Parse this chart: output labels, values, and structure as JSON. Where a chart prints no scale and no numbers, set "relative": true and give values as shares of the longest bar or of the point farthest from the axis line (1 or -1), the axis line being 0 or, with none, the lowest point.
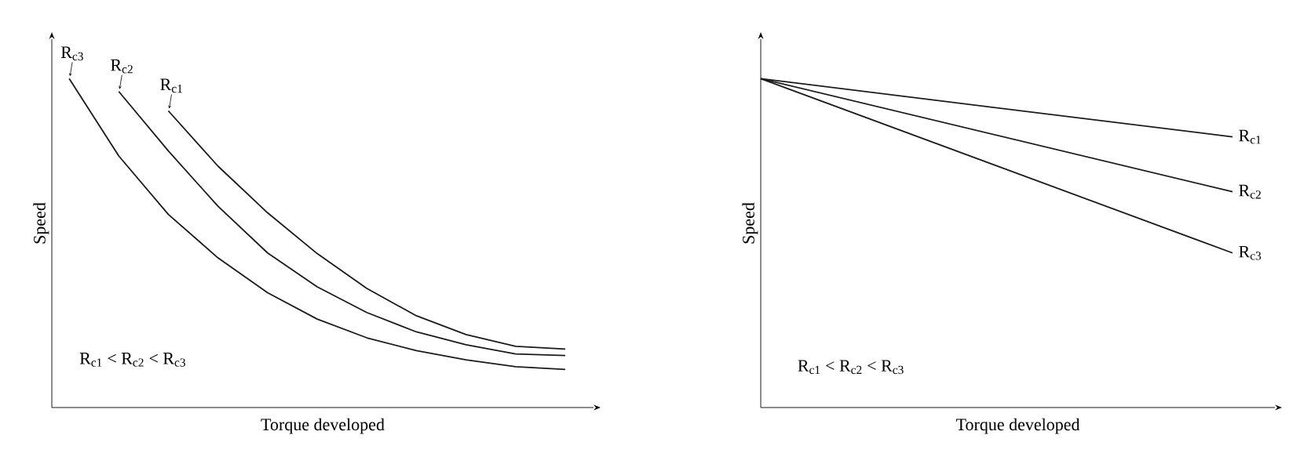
{
  "chart_data": [
    {
      "type": "line",
      "relative": true,
      "xlabel": "Torque developed",
      "ylabel": "Speed",
      "marker": "none",
      "line_style": "solid",
      "categories": [
        null,
        null,
        null,
        null,
        null,
        null,
        null,
        null,
        null,
        null,
        null
      ],
      "series": [
        {
          "name": "R$_{c1}$",
          "color": "#1a1a1a",
          "values": [
            null,
            null,
            0.902,
            0.734,
            0.592,
            0.468,
            0.362,
            0.279,
            0.222,
            0.186,
            0.178
          ]
        },
        {
          "name": "R$_{c2}$",
          "color": "#1a1a1a",
          "values": [
            null,
            0.961,
            0.78,
            0.612,
            0.47,
            0.367,
            0.289,
            0.23,
            0.191,
            0.163,
            0.158
          ]
        },
        {
          "name": "R$_{c3}$",
          "color": "#1a1a1a",
          "values": [
            1.0,
            0.765,
            0.587,
            0.455,
            0.349,
            0.269,
            0.212,
            0.173,
            0.145,
            0.124,
            0.116
          ]
        }
      ],
      "annotations": [
        "R$_{c1}$ < R$_{c2}$ < R$_{c3}$"
      ]
    },
    {
      "type": "line",
      "relative": true,
      "xlabel": "Torque developed",
      "ylabel": "Speed",
      "marker": "none",
      "line_style": "solid",
      "categories": [
        null,
        null
      ],
      "series": [
        {
          "name": "R$_{c1}$",
          "color": "#1a1a1a",
          "values": [
            1.0,
            0.823
          ]
        },
        {
          "name": "R$_{c2}$",
          "color": "#1a1a1a",
          "values": [
            1.0,
            0.656
          ]
        },
        {
          "name": "R$_{c3}$",
          "color": "#1a1a1a",
          "values": [
            1.0,
            0.47
          ]
        }
      ],
      "annotations": [
        "R$_{c1}$ < R$_{c2}$ < R$_{c3}$"
      ]
    }
  ]
}
